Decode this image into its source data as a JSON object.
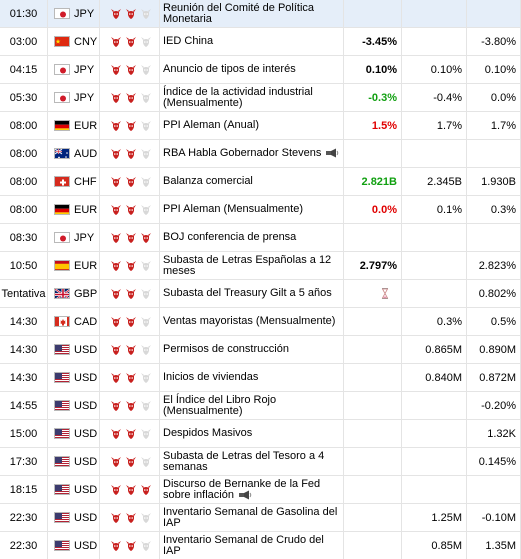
{
  "colors": {
    "highlight_row": "#e5eef9",
    "negative": "#e00000",
    "positive": "#11a011",
    "bull_active": "#c8201e",
    "bull_inactive": "#d8d8d8"
  },
  "events": [
    {
      "time": "01:30",
      "flag": "jp",
      "currency": "JPY",
      "importance": 2,
      "event": "Reunión del Comité de Política Monetaria",
      "actual": "",
      "actual_tone": "neu",
      "forecast": "",
      "previous": "",
      "highlight": true
    },
    {
      "time": "03:00",
      "flag": "cn",
      "currency": "CNY",
      "importance": 2,
      "event": "IED China",
      "actual": "-3.45%",
      "actual_tone": "neu",
      "forecast": "",
      "previous": "-3.80%",
      "highlight": false
    },
    {
      "time": "04:15",
      "flag": "jp",
      "currency": "JPY",
      "importance": 2,
      "event": "Anuncio de tipos de interés",
      "actual": "0.10%",
      "actual_tone": "neu",
      "forecast": "0.10%",
      "previous": "0.10%",
      "highlight": false
    },
    {
      "time": "05:30",
      "flag": "jp",
      "currency": "JPY",
      "importance": 2,
      "event": "Índice de la actividad industrial (Mensualmente)",
      "actual": "-0.3%",
      "actual_tone": "pos",
      "forecast": "-0.4%",
      "previous": "0.0%",
      "highlight": false
    },
    {
      "time": "08:00",
      "flag": "de",
      "currency": "EUR",
      "importance": 2,
      "event": "PPI Aleman (Anual)",
      "actual": "1.5%",
      "actual_tone": "neg",
      "forecast": "1.7%",
      "previous": "1.7%",
      "highlight": false
    },
    {
      "time": "08:00",
      "flag": "au",
      "currency": "AUD",
      "importance": 2,
      "event": "RBA Habla Gobernador Stevens",
      "speech": true,
      "actual": "",
      "actual_tone": "neu",
      "forecast": "",
      "previous": "",
      "highlight": false
    },
    {
      "time": "08:00",
      "flag": "ch",
      "currency": "CHF",
      "importance": 2,
      "event": "Balanza comercial",
      "actual": "2.821B",
      "actual_tone": "pos",
      "forecast": "2.345B",
      "previous": "1.930B",
      "highlight": false
    },
    {
      "time": "08:00",
      "flag": "de",
      "currency": "EUR",
      "importance": 2,
      "event": "PPI Aleman (Mensualmente)",
      "actual": "0.0%",
      "actual_tone": "neg",
      "forecast": "0.1%",
      "previous": "0.3%",
      "highlight": false
    },
    {
      "time": "08:30",
      "flag": "jp",
      "currency": "JPY",
      "importance": 3,
      "event": "BOJ conferencia de prensa",
      "actual": "",
      "actual_tone": "neu",
      "forecast": "",
      "previous": "",
      "highlight": false
    },
    {
      "time": "10:50",
      "flag": "es",
      "currency": "EUR",
      "importance": 2,
      "event": "Subasta de Letras Españolas a 12 meses",
      "actual": "2.797%",
      "actual_tone": "neu",
      "forecast": "",
      "previous": "2.823%",
      "highlight": false
    },
    {
      "time": "Tentativa",
      "flag": "gb",
      "currency": "GBP",
      "importance": 2,
      "event": "Subasta del Treasury Gilt a 5 años",
      "pending": true,
      "actual": "",
      "actual_tone": "neu",
      "forecast": "",
      "previous": "0.802%",
      "highlight": false
    },
    {
      "time": "14:30",
      "flag": "ca",
      "currency": "CAD",
      "importance": 2,
      "event": "Ventas mayoristas (Mensualmente)",
      "actual": "",
      "actual_tone": "neu",
      "forecast": "0.3%",
      "previous": "0.5%",
      "highlight": false
    },
    {
      "time": "14:30",
      "flag": "us",
      "currency": "USD",
      "importance": 2,
      "event": "Permisos de construcción",
      "actual": "",
      "actual_tone": "neu",
      "forecast": "0.865M",
      "previous": "0.890M",
      "highlight": false
    },
    {
      "time": "14:30",
      "flag": "us",
      "currency": "USD",
      "importance": 2,
      "event": "Inicios de viviendas",
      "actual": "",
      "actual_tone": "neu",
      "forecast": "0.840M",
      "previous": "0.872M",
      "highlight": false
    },
    {
      "time": "14:55",
      "flag": "us",
      "currency": "USD",
      "importance": 2,
      "event": "El Índice del Libro Rojo (Mensualmente)",
      "actual": "",
      "actual_tone": "neu",
      "forecast": "",
      "previous": "-0.20%",
      "highlight": false
    },
    {
      "time": "15:00",
      "flag": "us",
      "currency": "USD",
      "importance": 2,
      "event": "Despidos Masivos",
      "actual": "",
      "actual_tone": "neu",
      "forecast": "",
      "previous": "1.32K",
      "highlight": false
    },
    {
      "time": "17:30",
      "flag": "us",
      "currency": "USD",
      "importance": 2,
      "event": "Subasta de Letras del Tesoro a 4 semanas",
      "actual": "",
      "actual_tone": "neu",
      "forecast": "",
      "previous": "0.145%",
      "highlight": false
    },
    {
      "time": "18:15",
      "flag": "us",
      "currency": "USD",
      "importance": 3,
      "event": "Discurso de Bernanke de la Fed sobre inflación",
      "speech": true,
      "actual": "",
      "actual_tone": "neu",
      "forecast": "",
      "previous": "",
      "highlight": false
    },
    {
      "time": "22:30",
      "flag": "us",
      "currency": "USD",
      "importance": 2,
      "event": "Inventario Semanal de Gasolina del IAP",
      "actual": "",
      "actual_tone": "neu",
      "forecast": "1.25M",
      "previous": "-0.10M",
      "highlight": false
    },
    {
      "time": "22:30",
      "flag": "us",
      "currency": "USD",
      "importance": 2,
      "event": "Inventario Semanal de Crudo del IAP",
      "actual": "",
      "actual_tone": "neu",
      "forecast": "0.85M",
      "previous": "1.35M",
      "highlight": false
    }
  ]
}
